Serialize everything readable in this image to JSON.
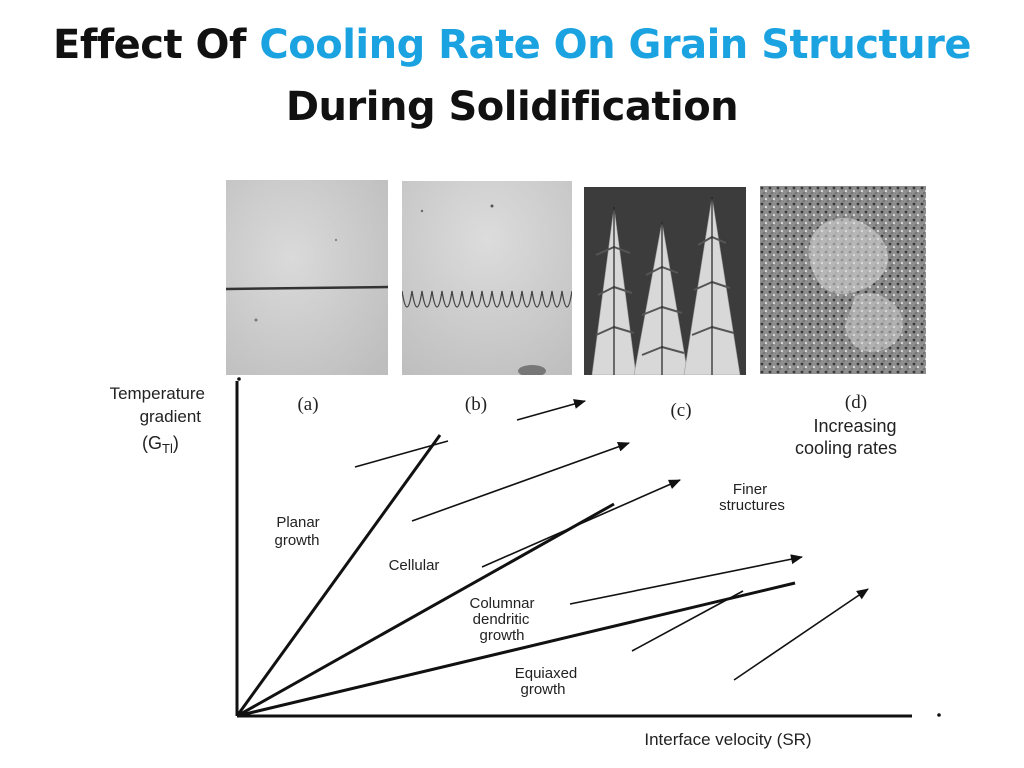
{
  "title": {
    "line1_prefix": "Effect Of",
    "line1_accent": "Cooling Rate On Grain Structure",
    "line2": "During Solidification"
  },
  "colors": {
    "title_text": "#111111",
    "title_accent": "#1aa3e0",
    "diagram_ink": "#111111"
  },
  "micrographs": [
    {
      "label": "(a)",
      "structure": "planar"
    },
    {
      "label": "(b)",
      "structure": "cellular"
    },
    {
      "label": "(c)",
      "structure": "columnar-dendritic"
    },
    {
      "label": "(d)",
      "structure": "equiaxed"
    }
  ],
  "diagram": {
    "y_axis_label": [
      "Temperature",
      "gradient"
    ],
    "y_axis_symbol": "(G",
    "y_axis_subscript": "Tl",
    "y_axis_close": ")",
    "x_axis_label": "Interface velocity (SR)",
    "increasing_label": [
      "Increasing",
      "cooling rates"
    ],
    "finer_label": [
      "Finer",
      "structures"
    ],
    "regions": {
      "planar": [
        "Planar",
        "growth"
      ],
      "cellular": "Cellular",
      "columnar": [
        "Columnar",
        "dendritic",
        "growth"
      ],
      "equiaxed": [
        "Equiaxed",
        "growth"
      ]
    }
  }
}
